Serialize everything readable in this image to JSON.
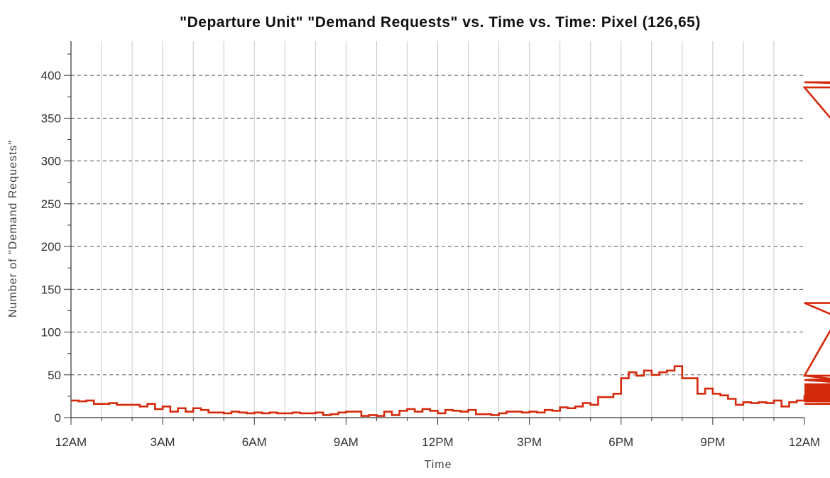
{
  "chart_data": {
    "type": "line",
    "step": true,
    "title": "\"Departure Unit\" \"Demand Requests\" vs. Time vs. Time: Pixel (126,65)",
    "xlabel": "Time",
    "ylabel": "Number of \"Demand Requests\"",
    "xlim": [
      0,
      24
    ],
    "ylim": [
      0,
      440
    ],
    "x_ticks": [
      {
        "value": 0,
        "label": "12AM"
      },
      {
        "value": 3,
        "label": "3AM"
      },
      {
        "value": 6,
        "label": "6AM"
      },
      {
        "value": 9,
        "label": "9AM"
      },
      {
        "value": 12,
        "label": "12PM"
      },
      {
        "value": 15,
        "label": "3PM"
      },
      {
        "value": 18,
        "label": "6PM"
      },
      {
        "value": 21,
        "label": "9PM"
      },
      {
        "value": 24,
        "label": "12AM"
      }
    ],
    "y_ticks": [
      0,
      50,
      100,
      150,
      200,
      250,
      300,
      350,
      400
    ],
    "grid": {
      "x_solid_every_hours": 1,
      "y_dashed": true
    },
    "line_color": "#d42a0c",
    "series": [
      {
        "interval_hours": 0.25,
        "values": [
          20,
          19,
          20,
          16,
          16,
          17,
          15,
          15,
          15,
          13,
          16,
          10,
          13,
          7,
          11,
          7,
          11,
          9,
          6,
          6,
          5,
          7,
          6,
          5,
          6,
          5,
          6,
          5,
          5,
          6,
          5,
          5,
          6,
          3,
          4,
          6,
          7,
          7,
          2,
          3,
          2,
          7,
          3,
          8,
          10,
          7,
          10,
          8,
          5,
          9,
          8,
          7,
          9,
          4,
          4,
          3,
          5,
          7,
          7,
          6,
          7,
          6,
          9,
          8,
          12,
          11,
          13,
          17,
          15,
          24,
          24,
          28,
          46,
          53,
          49,
          55,
          50,
          53,
          55,
          60,
          46,
          46,
          28,
          34,
          28,
          26,
          22,
          15,
          18,
          17,
          18,
          17,
          20,
          13,
          18,
          20,
          25,
          22,
          26,
          23,
          28,
          31,
          31,
          36,
          36,
          36,
          44,
          49,
          37,
          30,
          36,
          36,
          38,
          44,
          44,
          32,
          32,
          49,
          392,
          386,
          134,
          39,
          24,
          27,
          29,
          29,
          34,
          36,
          36,
          37,
          29,
          38,
          38,
          33,
          36,
          32,
          30,
          28,
          25,
          19,
          24,
          22,
          25,
          16,
          21,
          21
        ]
      }
    ]
  }
}
